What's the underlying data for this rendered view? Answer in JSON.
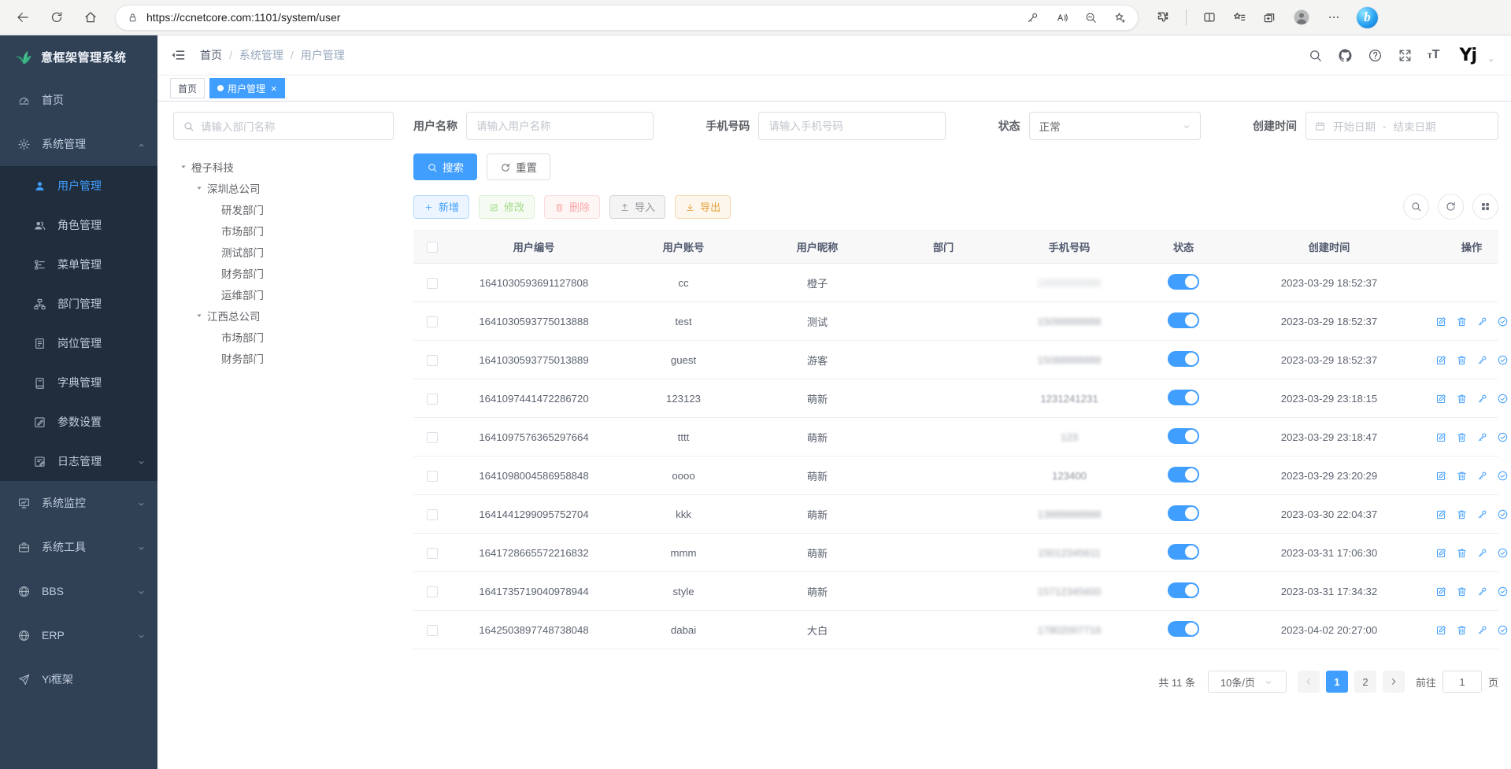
{
  "browser": {
    "url": "https://ccnetcore.com:1101/system/user",
    "left_icons": [
      "back-icon",
      "refresh-icon",
      "home-icon"
    ],
    "urlbar_icons": [
      "password-key-icon",
      "read-aloud-icon",
      "zoom-out-icon",
      "add-favorite-icon"
    ],
    "right_icons": [
      "extensions-icon",
      "split-screen-icon",
      "favorites-bar-icon",
      "collections-icon",
      "profile-icon",
      "more-icon",
      "bing-chat-icon"
    ],
    "bing_letter": "b"
  },
  "sidebar": {
    "logo_title": "意框架管理系统",
    "items": [
      {
        "label": "首页",
        "icon": "dashboard",
        "level": 1
      },
      {
        "label": "系统管理",
        "icon": "gear",
        "level": 1,
        "caret": "up"
      },
      {
        "label": "用户管理",
        "icon": "user",
        "level": 2,
        "active": true
      },
      {
        "label": "角色管理",
        "icon": "role",
        "level": 2
      },
      {
        "label": "菜单管理",
        "icon": "menu",
        "level": 2
      },
      {
        "label": "部门管理",
        "icon": "dept",
        "level": 2
      },
      {
        "label": "岗位管理",
        "icon": "post",
        "level": 2
      },
      {
        "label": "字典管理",
        "icon": "dict",
        "level": 2
      },
      {
        "label": "参数设置",
        "icon": "param",
        "level": 2
      },
      {
        "label": "日志管理",
        "icon": "log",
        "level": 2,
        "caret": "down"
      },
      {
        "label": "系统监控",
        "icon": "monitor",
        "level": 1,
        "caret": "down"
      },
      {
        "label": "系统工具",
        "icon": "tool",
        "level": 1,
        "caret": "down"
      },
      {
        "label": "BBS",
        "icon": "globe",
        "level": 1,
        "caret": "down"
      },
      {
        "label": "ERP",
        "icon": "globe",
        "level": 1,
        "caret": "down"
      },
      {
        "label": "Yi框架",
        "icon": "send",
        "level": 1
      }
    ]
  },
  "navbar": {
    "breadcrumb": [
      "首页",
      "系统管理",
      "用户管理"
    ],
    "right_icons": [
      "search-icon",
      "github-icon",
      "help-icon",
      "fullscreen-icon",
      "font-size-icon"
    ],
    "avatar_text": "Yj"
  },
  "tags": [
    {
      "label": "首页",
      "active": false
    },
    {
      "label": "用户管理",
      "active": true,
      "closable": true
    }
  ],
  "dept_tree": {
    "search_placeholder": "请输入部门名称",
    "nodes": [
      {
        "label": "橙子科技",
        "depth": 0,
        "expanded": true
      },
      {
        "label": "深圳总公司",
        "depth": 1,
        "expanded": true
      },
      {
        "label": "研发部门",
        "depth": 2
      },
      {
        "label": "市场部门",
        "depth": 2
      },
      {
        "label": "测试部门",
        "depth": 2
      },
      {
        "label": "财务部门",
        "depth": 2
      },
      {
        "label": "运维部门",
        "depth": 2
      },
      {
        "label": "江西总公司",
        "depth": 1,
        "expanded": true
      },
      {
        "label": "市场部门",
        "depth": 2
      },
      {
        "label": "财务部门",
        "depth": 2
      }
    ]
  },
  "filters": {
    "username_label": "用户名称",
    "username_placeholder": "请输入用户名称",
    "phone_label": "手机号码",
    "phone_placeholder": "请输入手机号码",
    "status_label": "状态",
    "status_value": "正常",
    "created_label": "创建时间",
    "date_start_placeholder": "开始日期",
    "date_separator": "-",
    "date_end_placeholder": "结束日期",
    "search_button": "搜索",
    "reset_button": "重置"
  },
  "toolbar": {
    "add": "新增",
    "edit": "修改",
    "delete": "删除",
    "import": "导入",
    "export": "导出",
    "right_icons": [
      "search-icon",
      "refresh-icon",
      "grid-icon"
    ]
  },
  "table": {
    "columns": [
      "用户编号",
      "用户账号",
      "用户昵称",
      "部门",
      "手机号码",
      "状态",
      "创建时间",
      "操作"
    ],
    "row_action_icons": [
      "edit-icon",
      "delete-icon",
      "reset-password-icon",
      "assign-role-icon"
    ],
    "rows": [
      {
        "id": "1641030593691127808",
        "account": "cc",
        "nickname": "橙子",
        "dept": "",
        "phone": "15000000000",
        "phone_masked": true,
        "mask_level": 3,
        "status": true,
        "created": "2023-03-29 18:52:37",
        "actions": false
      },
      {
        "id": "1641030593775013888",
        "account": "test",
        "nickname": "测试",
        "dept": "",
        "phone": "15098888888",
        "phone_masked": true,
        "mask_level": 2,
        "status": true,
        "created": "2023-03-29 18:52:37",
        "actions": true
      },
      {
        "id": "1641030593775013889",
        "account": "guest",
        "nickname": "游客",
        "dept": "",
        "phone": "15088888888",
        "phone_masked": true,
        "mask_level": 2,
        "status": true,
        "created": "2023-03-29 18:52:37",
        "actions": true
      },
      {
        "id": "1641097441472286720",
        "account": "123123",
        "nickname": "萌新",
        "dept": "",
        "phone": "1231241231",
        "phone_masked": true,
        "mask_level": 1,
        "status": true,
        "created": "2023-03-29 23:18:15",
        "actions": true
      },
      {
        "id": "1641097576365297664",
        "account": "tttt",
        "nickname": "萌新",
        "dept": "",
        "phone": "123",
        "phone_masked": true,
        "mask_level": 2,
        "status": true,
        "created": "2023-03-29 23:18:47",
        "actions": true
      },
      {
        "id": "1641098004586958848",
        "account": "oooo",
        "nickname": "萌新",
        "dept": "",
        "phone": "123400",
        "phone_masked": true,
        "mask_level": 1,
        "status": true,
        "created": "2023-03-29 23:20:29",
        "actions": true
      },
      {
        "id": "1641441299095752704",
        "account": "kkk",
        "nickname": "萌新",
        "dept": "",
        "phone": "13888888888",
        "phone_masked": true,
        "mask_level": 2,
        "status": true,
        "created": "2023-03-30 22:04:37",
        "actions": true
      },
      {
        "id": "1641728665572216832",
        "account": "mmm",
        "nickname": "萌新",
        "dept": "",
        "phone": "15012345611",
        "phone_masked": true,
        "mask_level": 2,
        "status": true,
        "created": "2023-03-31 17:06:30",
        "actions": true
      },
      {
        "id": "1641735719040978944",
        "account": "style",
        "nickname": "萌新",
        "dept": "",
        "phone": "15712345600",
        "phone_masked": true,
        "mask_level": 2,
        "status": true,
        "created": "2023-03-31 17:34:32",
        "actions": true
      },
      {
        "id": "1642503897748738048",
        "account": "dabai",
        "nickname": "大白",
        "dept": "",
        "phone": "17802007716",
        "phone_masked": true,
        "mask_level": 2,
        "status": true,
        "created": "2023-04-02 20:27:00",
        "actions": true
      }
    ]
  },
  "pagination": {
    "total": "共 11 条",
    "page_size": "10条/页",
    "pages": [
      "1",
      "2"
    ],
    "current_page": "1",
    "goto_label": "前往",
    "goto_value": "1",
    "page_unit": "页"
  },
  "colors": {
    "primary": "#409eff",
    "sidebar_bg": "#304156",
    "submenu_bg": "#1f2d3d",
    "success": "#67c23a",
    "danger": "#f56c6c",
    "warning": "#e6a23c",
    "info": "#909399"
  }
}
